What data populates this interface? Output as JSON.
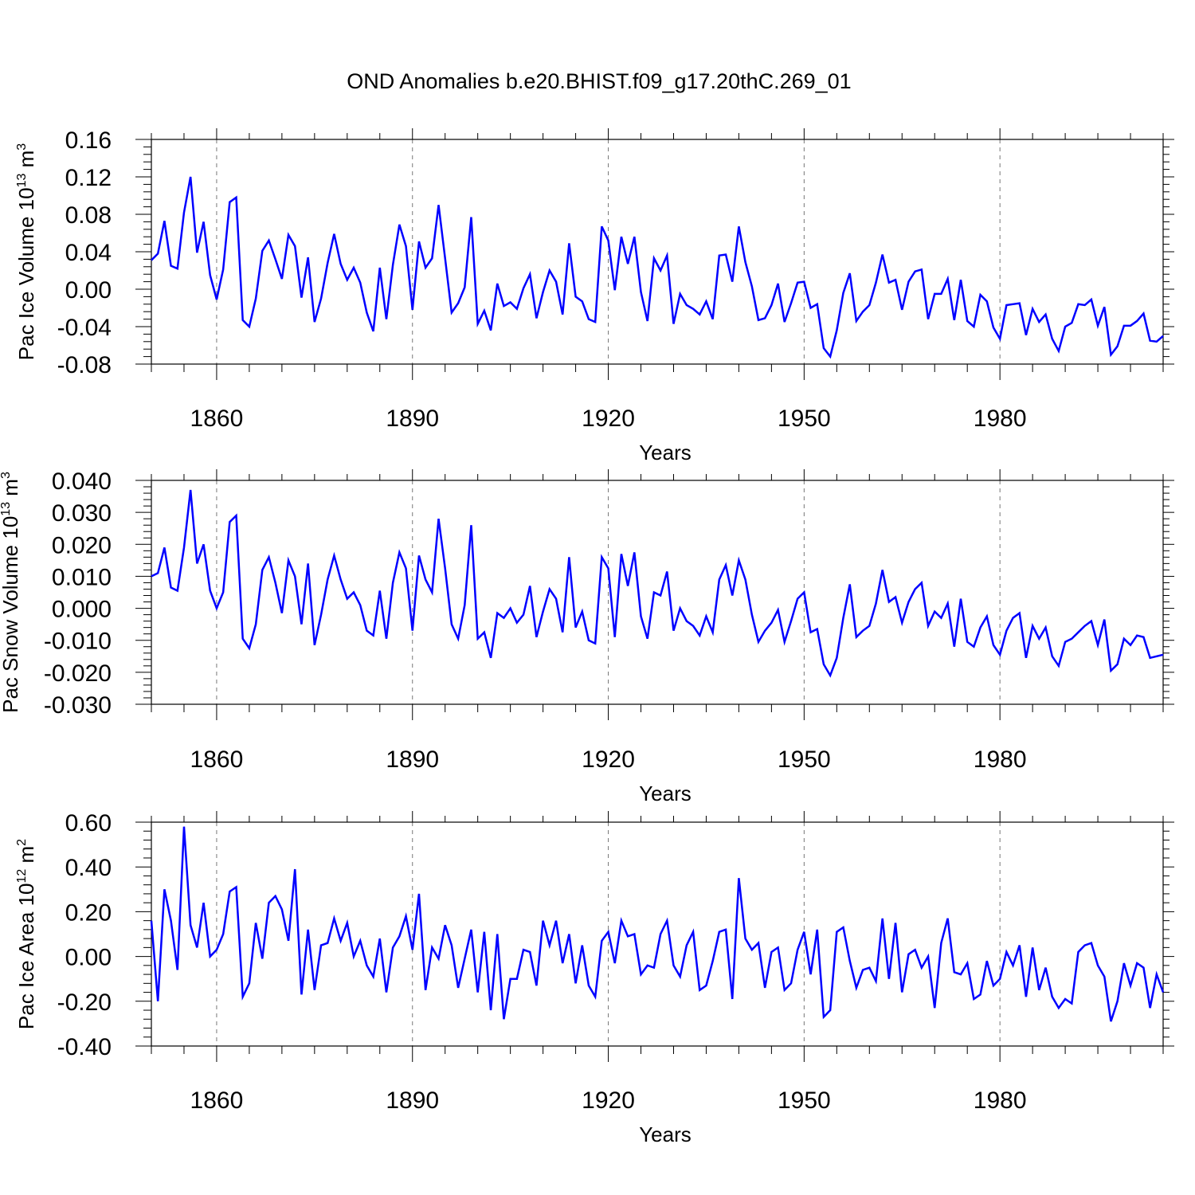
{
  "title": "OND Anomalies b.e20.BHIST.f09_g17.20thC.269_01",
  "series_color": "#0000ff",
  "chart_data": [
    {
      "type": "line",
      "panel_name": "ice-volume",
      "title": "OND Anomalies b.e20.BHIST.f09_g17.20thC.269_01",
      "xlabel": "Years",
      "ylabel": "Pac Ice Volume 10",
      "ylabel_exp": "13",
      "ylabel_unit": " m",
      "ylabel_unit_exp": "3",
      "xlim": [
        1850,
        2005
      ],
      "ylim": [
        -0.08,
        0.16
      ],
      "yticks": [
        -0.08,
        -0.04,
        0.0,
        0.04,
        0.08,
        0.12,
        0.16
      ],
      "ytick_labels": [
        "-0.08",
        "-0.04",
        "0.00",
        "0.04",
        "0.08",
        "0.12",
        "0.16"
      ],
      "xticks": [
        1860,
        1890,
        1920,
        1950,
        1980
      ],
      "xtick_labels": [
        "1860",
        "1890",
        "1920",
        "1950",
        "1980"
      ],
      "grid": "vertical dashed at major x ticks",
      "x_start": 1850,
      "series": [
        {
          "name": "Pac Ice Volume",
          "values": [
            0.031,
            0.038,
            0.073,
            0.025,
            0.022,
            0.082,
            0.12,
            0.039,
            0.072,
            0.015,
            -0.011,
            0.021,
            0.093,
            0.098,
            -0.033,
            -0.04,
            -0.01,
            0.041,
            0.052,
            0.032,
            0.011,
            0.058,
            0.046,
            -0.009,
            0.034,
            -0.035,
            -0.01,
            0.028,
            0.059,
            0.027,
            0.01,
            0.023,
            0.007,
            -0.025,
            -0.045,
            0.023,
            -0.032,
            0.026,
            0.069,
            0.046,
            -0.022,
            0.051,
            0.023,
            0.033,
            0.09,
            0.033,
            -0.025,
            -0.015,
            0.002,
            0.077,
            -0.037,
            -0.023,
            -0.044,
            0.006,
            -0.018,
            -0.014,
            -0.021,
            0.001,
            0.016,
            -0.031,
            -0.003,
            0.02,
            0.008,
            -0.027,
            0.049,
            -0.008,
            -0.013,
            -0.032,
            -0.035,
            0.067,
            0.052,
            -0.001,
            0.056,
            0.027,
            0.056,
            -0.003,
            -0.034,
            0.033,
            0.02,
            0.036,
            -0.037,
            -0.005,
            -0.017,
            -0.021,
            -0.027,
            -0.013,
            -0.032,
            0.036,
            0.037,
            0.008,
            0.067,
            0.029,
            0.003,
            -0.033,
            -0.031,
            -0.017,
            0.006,
            -0.035,
            -0.015,
            0.007,
            0.008,
            -0.02,
            -0.016,
            -0.063,
            -0.072,
            -0.044,
            -0.004,
            0.017,
            -0.034,
            -0.024,
            -0.017,
            0.007,
            0.037,
            0.007,
            0.01,
            -0.022,
            0.008,
            0.019,
            0.021,
            -0.032,
            -0.005,
            -0.005,
            0.011,
            -0.033,
            0.01,
            -0.034,
            -0.04,
            -0.006,
            -0.013,
            -0.041,
            -0.053,
            -0.017,
            -0.016,
            -0.015,
            -0.049,
            -0.021,
            -0.035,
            -0.027,
            -0.053,
            -0.066,
            -0.04,
            -0.036,
            -0.016,
            -0.017,
            -0.011,
            -0.039,
            -0.019,
            -0.07,
            -0.061,
            -0.039,
            -0.039,
            -0.034,
            -0.026,
            -0.055,
            -0.056,
            -0.05
          ]
        }
      ]
    },
    {
      "type": "line",
      "panel_name": "snow-volume",
      "xlabel": "Years",
      "ylabel": "Pac Snow Volume 10",
      "ylabel_exp": "13",
      "ylabel_unit": " m",
      "ylabel_unit_exp": "3",
      "xlim": [
        1850,
        2005
      ],
      "ylim": [
        -0.03,
        0.04
      ],
      "yticks": [
        -0.03,
        -0.02,
        -0.01,
        0.0,
        0.01,
        0.02,
        0.03,
        0.04
      ],
      "ytick_labels": [
        "-0.030",
        "-0.020",
        "-0.010",
        "0.000",
        "0.010",
        "0.020",
        "0.030",
        "0.040"
      ],
      "xticks": [
        1860,
        1890,
        1920,
        1950,
        1980
      ],
      "xtick_labels": [
        "1860",
        "1890",
        "1920",
        "1950",
        "1980"
      ],
      "grid": "vertical dashed at major x ticks",
      "x_start": 1850,
      "series": [
        {
          "name": "Pac Snow Volume",
          "values": [
            0.01,
            0.011,
            0.019,
            0.0065,
            0.0055,
            0.019,
            0.037,
            0.014,
            0.02,
            0.0055,
            0.0,
            0.005,
            0.027,
            0.029,
            -0.0095,
            -0.0125,
            -0.005,
            0.012,
            0.016,
            0.008,
            -0.0015,
            0.015,
            0.01,
            -0.005,
            0.014,
            -0.0115,
            -0.002,
            0.009,
            0.0165,
            0.009,
            0.003,
            0.005,
            0.001,
            -0.007,
            -0.0085,
            0.0055,
            -0.0095,
            0.008,
            0.0175,
            0.0125,
            -0.007,
            0.0165,
            0.009,
            0.005,
            0.028,
            0.0125,
            -0.005,
            -0.0095,
            0.001,
            0.026,
            -0.0095,
            -0.0075,
            -0.0155,
            -0.0015,
            -0.003,
            0.0,
            -0.0045,
            -0.002,
            0.007,
            -0.009,
            -0.001,
            0.006,
            0.003,
            -0.0075,
            0.016,
            -0.006,
            -0.001,
            -0.01,
            -0.011,
            0.016,
            0.0125,
            -0.009,
            0.017,
            0.007,
            0.0175,
            -0.0025,
            -0.0095,
            0.005,
            0.004,
            0.0115,
            -0.007,
            0.0,
            -0.004,
            -0.0055,
            -0.0085,
            -0.0025,
            -0.0075,
            0.009,
            0.0135,
            0.004,
            0.015,
            0.009,
            -0.002,
            -0.0105,
            -0.007,
            -0.0045,
            -0.0005,
            -0.0105,
            -0.004,
            0.003,
            0.005,
            -0.0075,
            -0.0065,
            -0.0175,
            -0.021,
            -0.0155,
            -0.003,
            0.0075,
            -0.009,
            -0.007,
            -0.0055,
            0.0015,
            0.012,
            0.002,
            0.0035,
            -0.0045,
            0.002,
            0.006,
            0.008,
            -0.0055,
            -0.001,
            -0.003,
            0.0015,
            -0.012,
            0.003,
            -0.0105,
            -0.012,
            -0.006,
            -0.0025,
            -0.0115,
            -0.0145,
            -0.007,
            -0.003,
            -0.0015,
            -0.0155,
            -0.0055,
            -0.0095,
            -0.006,
            -0.015,
            -0.018,
            -0.0105,
            -0.0095,
            -0.0075,
            -0.0055,
            -0.004,
            -0.0115,
            -0.0035,
            -0.0195,
            -0.0175,
            -0.0095,
            -0.0115,
            -0.0085,
            -0.009,
            -0.0155,
            -0.015,
            -0.0145
          ]
        }
      ]
    },
    {
      "type": "line",
      "panel_name": "ice-area",
      "xlabel": "Years",
      "ylabel": "Pac Ice Area 10",
      "ylabel_exp": "12",
      "ylabel_unit": " m",
      "ylabel_unit_exp": "2",
      "xlim": [
        1850,
        2005
      ],
      "ylim": [
        -0.4,
        0.6
      ],
      "yticks": [
        -0.4,
        -0.2,
        0.0,
        0.2,
        0.4,
        0.6
      ],
      "ytick_labels": [
        "-0.40",
        "-0.20",
        "0.00",
        "0.20",
        "0.40",
        "0.60"
      ],
      "xticks": [
        1860,
        1890,
        1920,
        1950,
        1980
      ],
      "xtick_labels": [
        "1860",
        "1890",
        "1920",
        "1950",
        "1980"
      ],
      "grid": "vertical dashed at major x ticks",
      "x_start": 1850,
      "series": [
        {
          "name": "Pac Ice Area",
          "values": [
            0.16,
            -0.2,
            0.3,
            0.16,
            -0.06,
            0.58,
            0.14,
            0.04,
            0.24,
            0.0,
            0.03,
            0.1,
            0.29,
            0.31,
            -0.18,
            -0.12,
            0.15,
            -0.01,
            0.24,
            0.27,
            0.21,
            0.07,
            0.39,
            -0.17,
            0.12,
            -0.15,
            0.05,
            0.06,
            0.17,
            0.07,
            0.15,
            0.0,
            0.07,
            -0.04,
            -0.09,
            0.08,
            -0.16,
            0.04,
            0.09,
            0.18,
            0.03,
            0.28,
            -0.15,
            0.04,
            -0.01,
            0.14,
            0.05,
            -0.14,
            -0.01,
            0.12,
            -0.16,
            0.11,
            -0.24,
            0.1,
            -0.28,
            -0.1,
            -0.1,
            0.03,
            0.02,
            -0.13,
            0.16,
            0.05,
            0.16,
            -0.03,
            0.1,
            -0.12,
            0.05,
            -0.13,
            -0.18,
            0.07,
            0.11,
            -0.03,
            0.16,
            0.09,
            0.1,
            -0.08,
            -0.04,
            -0.05,
            0.1,
            0.16,
            -0.04,
            -0.09,
            0.05,
            0.11,
            -0.15,
            -0.13,
            -0.02,
            0.11,
            0.12,
            -0.19,
            0.35,
            0.08,
            0.03,
            0.06,
            -0.14,
            0.02,
            0.04,
            -0.15,
            -0.12,
            0.03,
            0.11,
            -0.08,
            0.12,
            -0.27,
            -0.24,
            0.11,
            0.13,
            -0.02,
            -0.14,
            -0.06,
            -0.05,
            -0.11,
            0.17,
            -0.1,
            0.15,
            -0.16,
            0.01,
            0.03,
            -0.05,
            0.0,
            -0.23,
            0.06,
            0.17,
            -0.07,
            -0.08,
            -0.03,
            -0.19,
            -0.17,
            -0.02,
            -0.13,
            -0.1,
            0.02,
            -0.04,
            0.05,
            -0.18,
            0.04,
            -0.15,
            -0.05,
            -0.18,
            -0.23,
            -0.19,
            -0.21,
            0.02,
            0.05,
            0.06,
            -0.04,
            -0.09,
            -0.29,
            -0.2,
            -0.03,
            -0.13,
            -0.03,
            -0.05,
            -0.23,
            -0.08,
            -0.16
          ]
        }
      ]
    }
  ]
}
